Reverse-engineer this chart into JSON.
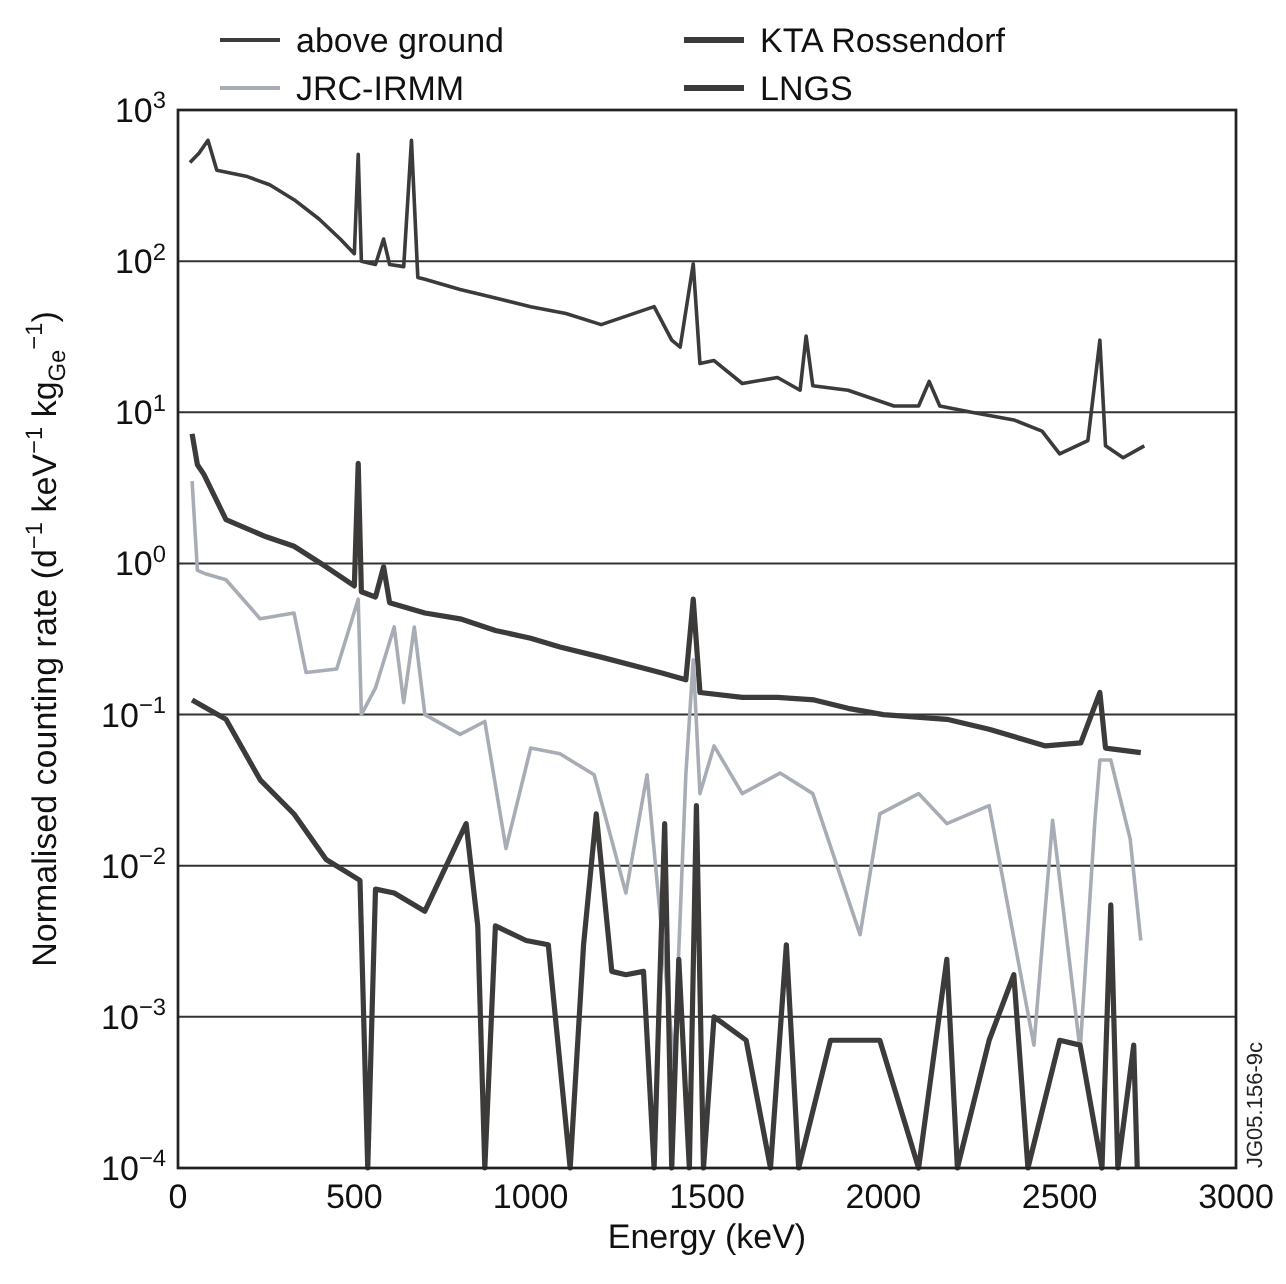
{
  "chart_data": {
    "type": "line",
    "xlabel": "Energy (keV)",
    "ylabel": "Normalised counting rate (d$^{−1}$ keV$^{−1}$ kg$_{Ge}$$^{−1}$)",
    "xlim": [
      0,
      3000
    ],
    "xticks": [
      0,
      500,
      1000,
      1500,
      2000,
      2500,
      3000
    ],
    "ylim": [
      0.0001,
      1000
    ],
    "yticks": [
      {
        "value": 0.0001,
        "label": "10$^{−4}$"
      },
      {
        "value": 0.001,
        "label": "10$^{−3}$"
      },
      {
        "value": 0.01,
        "label": "10$^{−2}$"
      },
      {
        "value": 0.1,
        "label": "10$^{−1}$"
      },
      {
        "value": 1,
        "label": "10$^{0}$"
      },
      {
        "value": 10,
        "label": "10$^{1}$"
      },
      {
        "value": 100,
        "label": "10$^{2}$"
      },
      {
        "value": 1000,
        "label": "10$^{3}$"
      }
    ],
    "log": "y",
    "grid": "y",
    "legend": "top",
    "line_style": "solid",
    "annotations": [
      "JG05.156-9c"
    ],
    "series": [
      {
        "name": "above ground",
        "color": "#3d3a3a",
        "x": [
          34,
          60,
          85,
          110,
          193,
          260,
          329,
          400,
          460,
          500,
          511,
          520,
          560,
          583,
          600,
          640,
          662,
          680,
          700,
          800,
          900,
          1000,
          1100,
          1200,
          1350,
          1400,
          1424,
          1461,
          1480,
          1520,
          1600,
          1700,
          1764,
          1781,
          1800,
          1900,
          2030,
          2100,
          2130,
          2160,
          2250,
          2370,
          2450,
          2500,
          2580,
          2614,
          2630,
          2680,
          2740
        ],
        "values": [
          450,
          520,
          630,
          400,
          365,
          320,
          255,
          190,
          140,
          112,
          510,
          100,
          95,
          140,
          95,
          92,
          630,
          78,
          76,
          65,
          57,
          50,
          45,
          38,
          50,
          30,
          27,
          96,
          21,
          22,
          15.5,
          17,
          14,
          32,
          15,
          14,
          11,
          11,
          16,
          11,
          10,
          8.9,
          7.5,
          5.3,
          6.5,
          30,
          6,
          5,
          6
        ]
      },
      {
        "name": "KTA Rossendorf",
        "color": "#3d3a3a",
        "x": [
          40,
          55,
          73,
          136,
          250,
          329,
          420,
          500,
          511,
          520,
          560,
          583,
          600,
          700,
          800,
          900,
          1000,
          1083,
          1200,
          1367,
          1440,
          1461,
          1480,
          1600,
          1700,
          1804,
          1900,
          2000,
          2180,
          2300,
          2460,
          2560,
          2614,
          2630,
          2730
        ],
        "values": [
          7.2,
          4.5,
          3.9,
          1.95,
          1.5,
          1.3,
          0.95,
          0.71,
          4.6,
          0.65,
          0.6,
          0.95,
          0.55,
          0.47,
          0.43,
          0.36,
          0.32,
          0.28,
          0.24,
          0.19,
          0.17,
          0.58,
          0.14,
          0.13,
          0.13,
          0.125,
          0.11,
          0.1,
          0.093,
          0.08,
          0.062,
          0.065,
          0.14,
          0.06,
          0.056
        ]
      },
      {
        "name": "JRC-IRMM",
        "color": "#a8adb5",
        "x": [
          40,
          55,
          80,
          136,
          233,
          329,
          363,
          450,
          511,
          520,
          560,
          613,
          640,
          670,
          700,
          800,
          870,
          930,
          1000,
          1083,
          1180,
          1270,
          1330,
          1407,
          1440,
          1461,
          1480,
          1520,
          1600,
          1707,
          1800,
          1934,
          1990,
          2100,
          2180,
          2300,
          2427,
          2480,
          2558,
          2600,
          2614,
          2645,
          2700,
          2730
        ],
        "values": [
          3.5,
          0.9,
          0.85,
          0.78,
          0.43,
          0.47,
          0.19,
          0.2,
          0.58,
          0.1,
          0.15,
          0.38,
          0.12,
          0.38,
          0.1,
          0.074,
          0.09,
          0.013,
          0.06,
          0.055,
          0.04,
          0.0066,
          0.04,
          0.00048,
          0.04,
          0.23,
          0.03,
          0.062,
          0.03,
          0.041,
          0.03,
          0.0035,
          0.022,
          0.03,
          0.019,
          0.025,
          0.00065,
          0.02,
          0.0006,
          0.02,
          0.05,
          0.05,
          0.015,
          0.0032
        ]
      },
      {
        "name": "LNGS",
        "color": "#3d3a3a",
        "x": [
          40,
          136,
          233,
          329,
          420,
          516,
          538,
          560,
          613,
          700,
          817,
          850,
          870,
          900,
          987,
          1050,
          1112,
          1150,
          1186,
          1230,
          1270,
          1320,
          1350,
          1380,
          1400,
          1420,
          1450,
          1470,
          1490,
          1520,
          1611,
          1680,
          1725,
          1760,
          1850,
          1990,
          2100,
          2180,
          2210,
          2300,
          2370,
          2410,
          2500,
          2558,
          2620,
          2645,
          2665,
          2710,
          2720
        ],
        "values": [
          0.125,
          0.093,
          0.037,
          0.022,
          0.011,
          0.008,
          0.0001,
          0.007,
          0.0066,
          0.005,
          0.019,
          0.004,
          0.0001,
          0.004,
          0.0032,
          0.003,
          0.0001,
          0.003,
          0.022,
          0.002,
          0.0019,
          0.002,
          0.0001,
          0.019,
          0.0001,
          0.0024,
          0.0001,
          0.025,
          0.0001,
          0.001,
          0.0007,
          0.0001,
          0.003,
          0.0001,
          0.0007,
          0.0007,
          0.0001,
          0.0024,
          0.0001,
          0.0007,
          0.0019,
          0.0001,
          0.0007,
          0.00065,
          0.0001,
          0.0055,
          0.0001,
          0.00065,
          0.0001
        ]
      }
    ]
  }
}
